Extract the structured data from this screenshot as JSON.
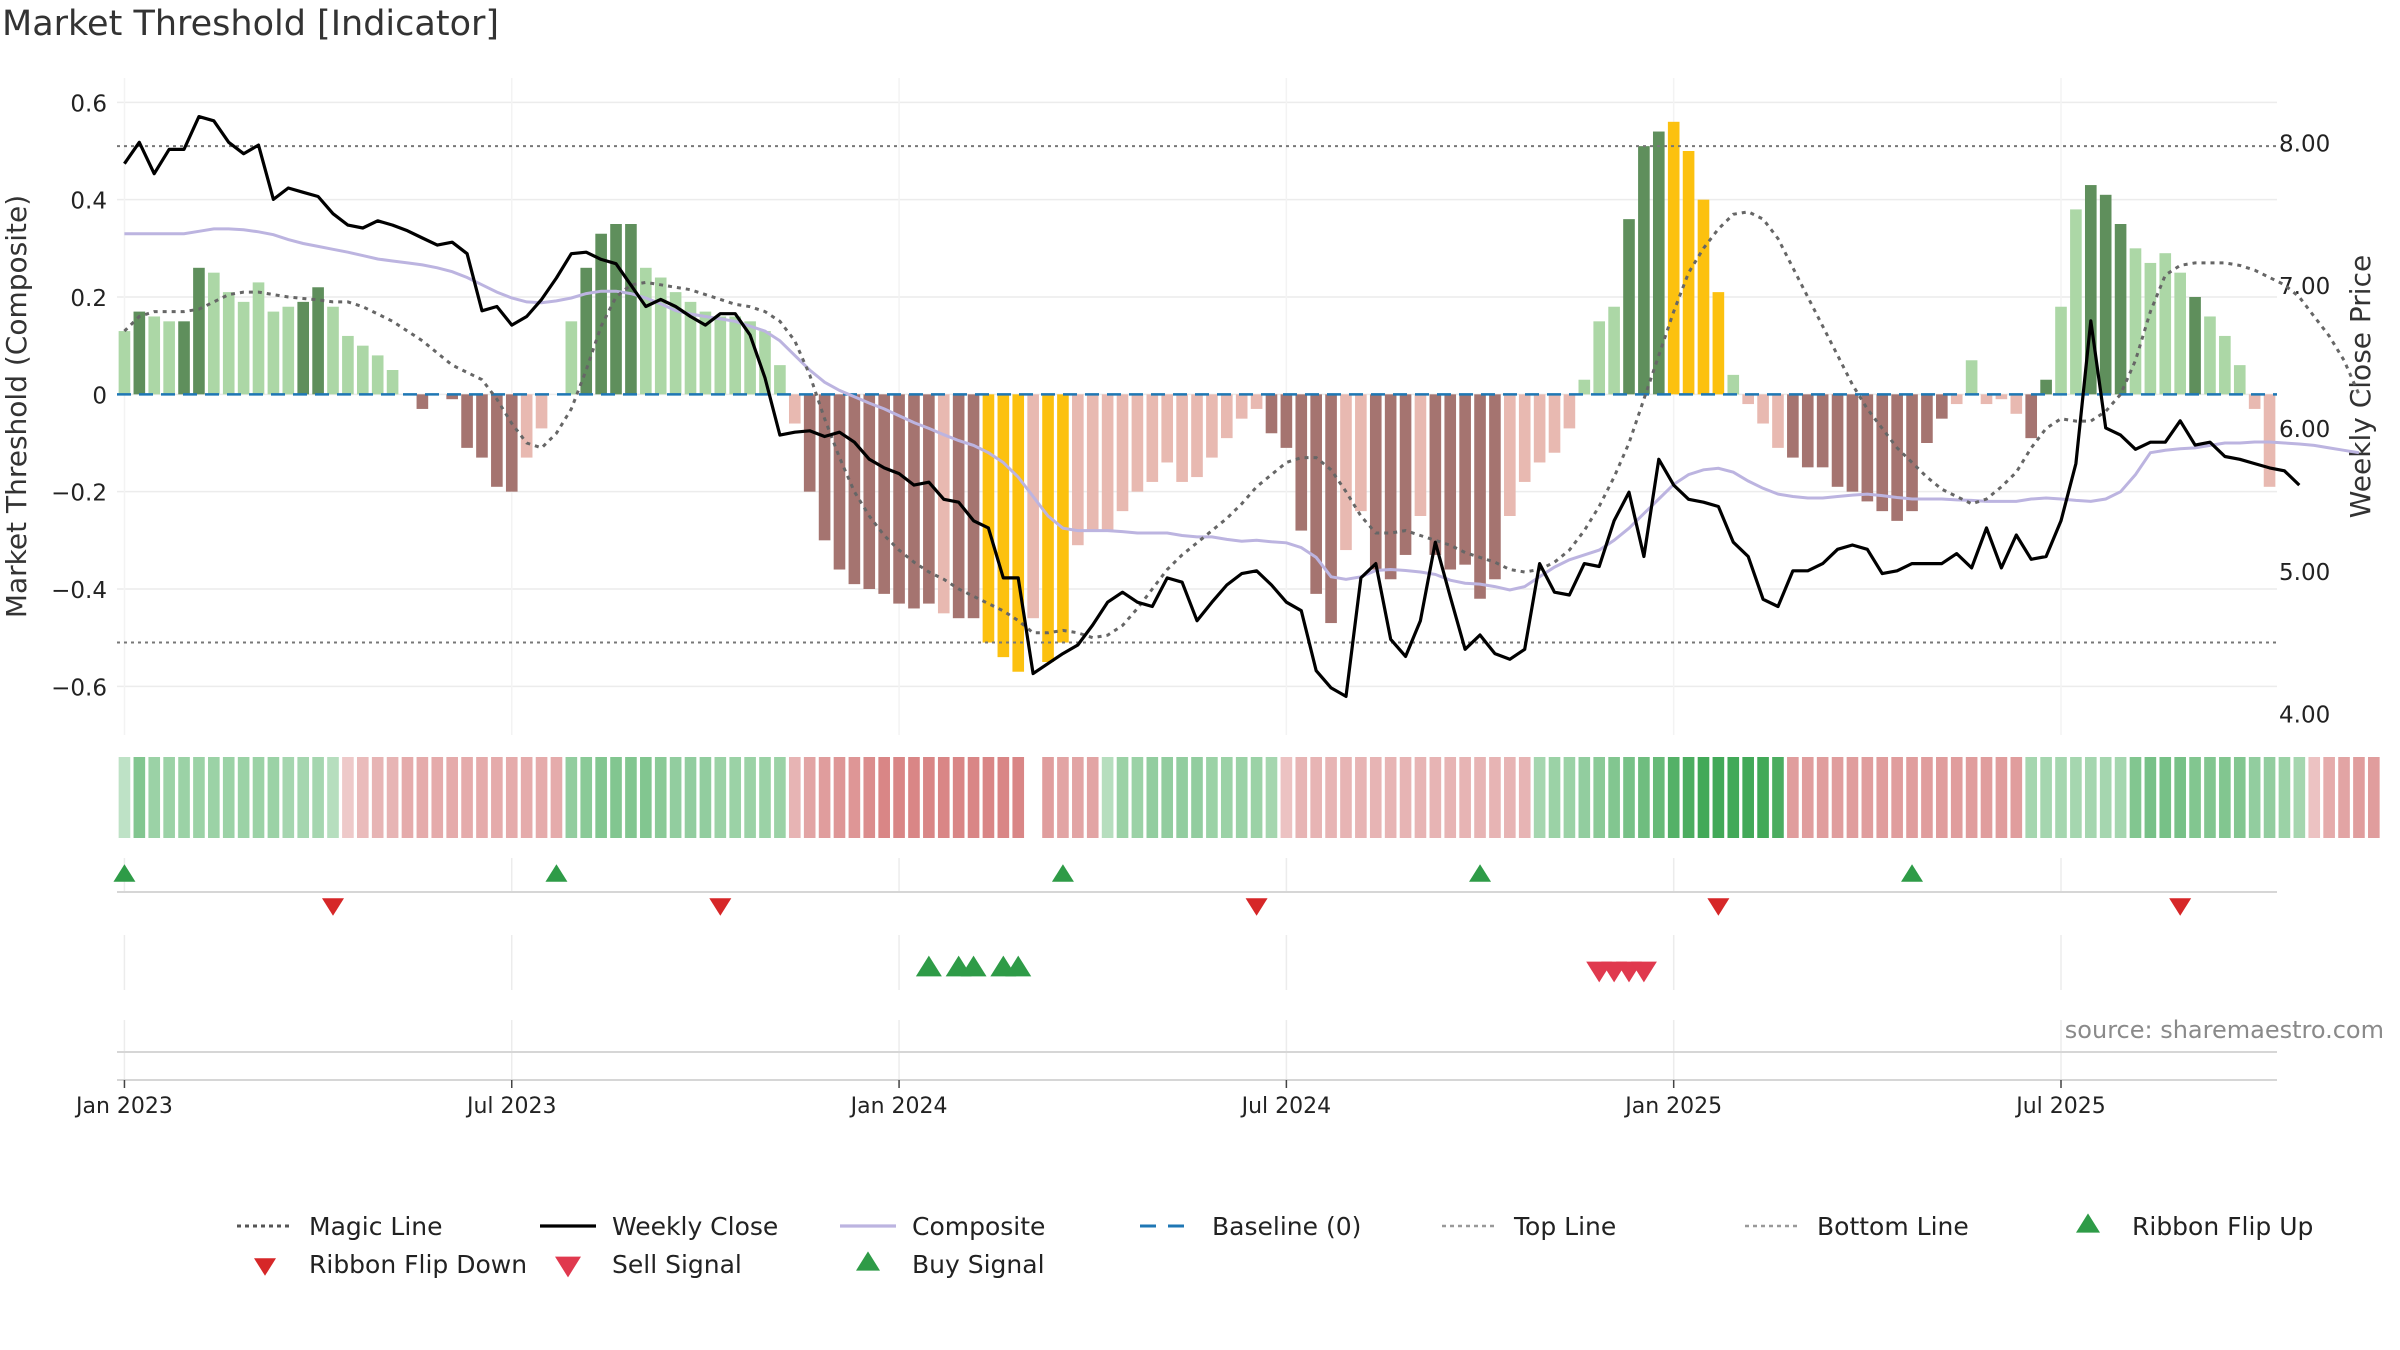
{
  "title": "Market Threshold [Indicator]",
  "source": "source: sharemaestro.com",
  "chart_data": {
    "type": "bar",
    "ylabel": "Market Threshold (Composite)",
    "y2label": "Weekly Close Price",
    "ylim": [
      -0.7,
      0.65
    ],
    "y2lim": [
      3.85,
      8.45
    ],
    "yticks": [
      0.6,
      0.4,
      0.2,
      0,
      -0.2,
      -0.4,
      -0.6
    ],
    "yticklabels": [
      "0.6",
      "0.4",
      "0.2",
      "0",
      "−0.2",
      "−0.4",
      "−0.6"
    ],
    "y2ticks": [
      8,
      7,
      6,
      5,
      4
    ],
    "y2ticklabels": [
      "8.00",
      "7.00",
      "6.00",
      "5.00",
      "4.00"
    ],
    "xticks": [
      0,
      26,
      52,
      78,
      104,
      130
    ],
    "xticklabels": [
      "Jan 2023",
      "Jul 2023",
      "Jan 2024",
      "Jul 2024",
      "Jan 2025",
      "Jul 2025"
    ],
    "top_line": 0.51,
    "bottom_line": -0.51,
    "colors": {
      "pos_strong": "#5f8f5c",
      "pos_weak": "#acd7a6",
      "neg_strong": "#a57470",
      "neg_weak": "#e8b9b1",
      "extreme": "#fcc10f",
      "close": "#000000",
      "composite": "#bcb4e0",
      "magic": "#666666",
      "baseline": "#1f77b4",
      "buy": "#2e9b47",
      "sell": "#e0394e",
      "flip_up": "#2e9b47",
      "flip_down": "#d62728"
    },
    "bars": [
      0.13,
      0.17,
      0.16,
      0.15,
      0.15,
      0.26,
      0.25,
      0.21,
      0.19,
      0.23,
      0.17,
      0.18,
      0.19,
      0.22,
      0.18,
      0.12,
      0.1,
      0.08,
      0.05,
      0.0,
      -0.03,
      0.0,
      -0.01,
      -0.11,
      -0.13,
      -0.19,
      -0.2,
      -0.13,
      -0.07,
      0.0,
      0.15,
      0.26,
      0.33,
      0.35,
      0.35,
      0.26,
      0.24,
      0.21,
      0.19,
      0.17,
      0.16,
      0.16,
      0.15,
      0.13,
      0.06,
      -0.06,
      -0.2,
      -0.3,
      -0.36,
      -0.39,
      -0.4,
      -0.41,
      -0.43,
      -0.44,
      -0.43,
      -0.45,
      -0.46,
      -0.46,
      -0.51,
      -0.54,
      -0.57,
      -0.46,
      -0.55,
      -0.51,
      -0.31,
      -0.28,
      -0.28,
      -0.24,
      -0.2,
      -0.18,
      -0.14,
      -0.18,
      -0.17,
      -0.13,
      -0.09,
      -0.05,
      -0.03,
      -0.08,
      -0.11,
      -0.28,
      -0.41,
      -0.47,
      -0.32,
      -0.24,
      -0.36,
      -0.38,
      -0.33,
      -0.25,
      -0.33,
      -0.36,
      -0.35,
      -0.42,
      -0.38,
      -0.25,
      -0.18,
      -0.14,
      -0.12,
      -0.07,
      0.03,
      0.15,
      0.18,
      0.36,
      0.51,
      0.54,
      0.56,
      0.5,
      0.4,
      0.21,
      0.04,
      -0.02,
      -0.06,
      -0.11,
      -0.13,
      -0.15,
      -0.15,
      -0.19,
      -0.2,
      -0.22,
      -0.24,
      -0.26,
      -0.24,
      -0.1,
      -0.05,
      -0.02,
      0.07,
      -0.02,
      -0.01,
      -0.04,
      -0.09,
      0.03,
      0.18,
      0.38,
      0.43,
      0.41,
      0.35,
      0.3,
      0.27,
      0.29,
      0.25,
      0.2,
      0.16,
      0.12,
      0.06,
      -0.03,
      -0.19
    ],
    "bar_shade": [
      "w",
      "s",
      "w",
      "w",
      "s",
      "s",
      "w",
      "w",
      "w",
      "w",
      "w",
      "w",
      "s",
      "s",
      "w",
      "w",
      "w",
      "w",
      "w",
      "w",
      "s",
      "w",
      "s",
      "s",
      "s",
      "s",
      "s",
      "w",
      "w",
      "w",
      "w",
      "s",
      "s",
      "s",
      "s",
      "w",
      "w",
      "w",
      "w",
      "w",
      "w",
      "w",
      "w",
      "w",
      "w",
      "w",
      "s",
      "s",
      "s",
      "s",
      "s",
      "s",
      "s",
      "s",
      "s",
      "w",
      "s",
      "s",
      "x",
      "x",
      "x",
      "w",
      "x",
      "x",
      "w",
      "w",
      "w",
      "w",
      "w",
      "w",
      "w",
      "w",
      "w",
      "w",
      "w",
      "w",
      "w",
      "s",
      "s",
      "s",
      "s",
      "s",
      "w",
      "w",
      "s",
      "s",
      "s",
      "w",
      "s",
      "s",
      "s",
      "s",
      "s",
      "w",
      "w",
      "w",
      "w",
      "w",
      "w",
      "w",
      "w",
      "s",
      "s",
      "s",
      "x",
      "x",
      "x",
      "x",
      "w",
      "w",
      "w",
      "w",
      "s",
      "s",
      "s",
      "s",
      "s",
      "s",
      "s",
      "s",
      "s",
      "s",
      "s",
      "w",
      "w",
      "w",
      "w",
      "w",
      "s",
      "s",
      "w",
      "w",
      "s",
      "s",
      "s",
      "w",
      "w",
      "w",
      "w",
      "s",
      "w",
      "w",
      "w",
      "w",
      "w",
      "w",
      "s"
    ],
    "close": [
      7.85,
      8.0,
      7.78,
      7.95,
      7.95,
      8.18,
      8.15,
      8.0,
      7.92,
      7.98,
      7.6,
      7.68,
      7.65,
      7.62,
      7.5,
      7.42,
      7.4,
      7.45,
      7.42,
      7.38,
      7.33,
      7.28,
      7.3,
      7.22,
      6.82,
      6.85,
      6.72,
      6.78,
      6.9,
      7.05,
      7.22,
      7.23,
      7.18,
      7.15,
      7.0,
      6.85,
      6.9,
      6.85,
      6.78,
      6.72,
      6.8,
      6.8,
      6.65,
      6.35,
      5.95,
      5.97,
      5.98,
      5.94,
      5.97,
      5.9,
      5.78,
      5.72,
      5.68,
      5.6,
      5.62,
      5.5,
      5.48,
      5.35,
      5.3,
      4.95,
      4.95,
      4.28,
      4.35,
      4.42,
      4.48,
      4.62,
      4.78,
      4.85,
      4.78,
      4.75,
      4.95,
      4.92,
      4.65,
      4.78,
      4.9,
      4.98,
      5.0,
      4.9,
      4.78,
      4.72,
      4.3,
      4.18,
      4.12,
      4.95,
      5.05,
      4.52,
      4.4,
      4.65,
      5.2,
      4.82,
      4.45,
      4.55,
      4.42,
      4.38,
      4.45,
      5.05,
      4.85,
      4.83,
      5.05,
      5.03,
      5.35,
      5.55,
      5.1,
      5.78,
      5.6,
      5.5,
      5.48,
      5.45,
      5.2,
      5.1,
      4.8,
      4.75,
      5.0,
      5.0,
      5.05,
      5.15,
      5.18,
      5.15,
      4.98,
      5.0,
      5.05,
      5.05,
      5.05,
      5.12,
      5.02,
      5.3,
      5.02,
      5.25,
      5.08,
      5.1,
      5.35,
      5.75,
      6.75,
      6.0,
      5.95,
      5.85,
      5.9,
      5.9,
      6.05,
      5.88,
      5.9,
      5.8,
      5.78,
      5.75,
      5.72,
      5.7,
      5.6
    ],
    "composite": [
      0.33,
      0.33,
      0.33,
      0.33,
      0.33,
      0.335,
      0.34,
      0.34,
      0.338,
      0.334,
      0.328,
      0.318,
      0.31,
      0.304,
      0.298,
      0.292,
      0.285,
      0.278,
      0.274,
      0.27,
      0.266,
      0.26,
      0.252,
      0.24,
      0.225,
      0.21,
      0.198,
      0.19,
      0.188,
      0.192,
      0.198,
      0.207,
      0.212,
      0.212,
      0.207,
      0.198,
      0.186,
      0.172,
      0.165,
      0.16,
      0.155,
      0.15,
      0.14,
      0.13,
      0.11,
      0.08,
      0.05,
      0.025,
      0.008,
      -0.005,
      -0.018,
      -0.03,
      -0.044,
      -0.058,
      -0.07,
      -0.083,
      -0.095,
      -0.105,
      -0.12,
      -0.14,
      -0.17,
      -0.21,
      -0.25,
      -0.275,
      -0.28,
      -0.28,
      -0.28,
      -0.282,
      -0.285,
      -0.285,
      -0.285,
      -0.29,
      -0.293,
      -0.293,
      -0.298,
      -0.302,
      -0.3,
      -0.303,
      -0.305,
      -0.315,
      -0.335,
      -0.375,
      -0.38,
      -0.375,
      -0.362,
      -0.36,
      -0.362,
      -0.365,
      -0.37,
      -0.382,
      -0.388,
      -0.39,
      -0.395,
      -0.402,
      -0.395,
      -0.375,
      -0.355,
      -0.34,
      -0.33,
      -0.32,
      -0.3,
      -0.275,
      -0.245,
      -0.215,
      -0.185,
      -0.165,
      -0.155,
      -0.152,
      -0.16,
      -0.178,
      -0.193,
      -0.205,
      -0.21,
      -0.213,
      -0.213,
      -0.21,
      -0.207,
      -0.205,
      -0.208,
      -0.212,
      -0.215,
      -0.215,
      -0.215,
      -0.217,
      -0.218,
      -0.22,
      -0.22,
      -0.22,
      -0.215,
      -0.213,
      -0.215,
      -0.218,
      -0.22,
      -0.215,
      -0.2,
      -0.165,
      -0.12,
      -0.115,
      -0.112,
      -0.11,
      -0.105,
      -0.1,
      -0.1,
      -0.098,
      -0.098,
      -0.1,
      -0.102,
      -0.105,
      -0.11,
      -0.115,
      -0.12
    ],
    "magic": [
      0.13,
      0.16,
      0.17,
      0.17,
      0.17,
      0.175,
      0.19,
      0.205,
      0.21,
      0.21,
      0.205,
      0.2,
      0.197,
      0.194,
      0.19,
      0.19,
      0.18,
      0.165,
      0.15,
      0.13,
      0.11,
      0.085,
      0.06,
      0.045,
      0.03,
      -0.01,
      -0.06,
      -0.1,
      -0.11,
      -0.08,
      -0.03,
      0.05,
      0.14,
      0.2,
      0.225,
      0.23,
      0.225,
      0.22,
      0.215,
      0.205,
      0.195,
      0.185,
      0.18,
      0.17,
      0.15,
      0.11,
      0.04,
      -0.05,
      -0.13,
      -0.2,
      -0.25,
      -0.29,
      -0.32,
      -0.345,
      -0.365,
      -0.38,
      -0.4,
      -0.415,
      -0.43,
      -0.445,
      -0.465,
      -0.49,
      -0.49,
      -0.485,
      -0.49,
      -0.5,
      -0.495,
      -0.475,
      -0.44,
      -0.4,
      -0.36,
      -0.33,
      -0.305,
      -0.28,
      -0.255,
      -0.225,
      -0.19,
      -0.165,
      -0.14,
      -0.13,
      -0.13,
      -0.155,
      -0.2,
      -0.25,
      -0.285,
      -0.285,
      -0.28,
      -0.29,
      -0.3,
      -0.31,
      -0.325,
      -0.335,
      -0.345,
      -0.36,
      -0.365,
      -0.36,
      -0.345,
      -0.32,
      -0.28,
      -0.23,
      -0.17,
      -0.1,
      -0.01,
      0.08,
      0.17,
      0.25,
      0.3,
      0.34,
      0.37,
      0.375,
      0.36,
      0.32,
      0.26,
      0.2,
      0.14,
      0.08,
      0.02,
      -0.03,
      -0.07,
      -0.11,
      -0.14,
      -0.17,
      -0.195,
      -0.21,
      -0.225,
      -0.215,
      -0.19,
      -0.16,
      -0.11,
      -0.07,
      -0.05,
      -0.055,
      -0.055,
      -0.035,
      0.0,
      0.07,
      0.17,
      0.245,
      0.265,
      0.27,
      0.27,
      0.27,
      0.265,
      0.255,
      0.24,
      0.225,
      0.2,
      0.16,
      0.12,
      0.07,
      0.0
    ],
    "ribbon": [
      0.15,
      0.5,
      0.35,
      0.35,
      0.35,
      0.35,
      0.35,
      0.35,
      0.35,
      0.35,
      0.35,
      0.3,
      0.3,
      0.3,
      0.2,
      -0.15,
      -0.25,
      -0.3,
      -0.3,
      -0.35,
      -0.35,
      -0.35,
      -0.35,
      -0.35,
      -0.35,
      -0.35,
      -0.35,
      -0.35,
      -0.35,
      -0.35,
      0.4,
      0.45,
      0.5,
      0.5,
      0.5,
      0.5,
      0.45,
      0.4,
      0.4,
      0.4,
      0.35,
      0.35,
      0.35,
      0.35,
      0.35,
      -0.3,
      -0.4,
      -0.45,
      -0.5,
      -0.5,
      -0.55,
      -0.6,
      -0.6,
      -0.6,
      -0.6,
      -0.6,
      -0.6,
      -0.6,
      -0.6,
      -0.6,
      -0.6,
      null,
      -0.45,
      -0.4,
      -0.4,
      -0.4,
      0.2,
      0.35,
      0.35,
      0.4,
      0.4,
      0.4,
      0.4,
      0.35,
      0.35,
      0.35,
      0.35,
      0.3,
      -0.2,
      -0.3,
      -0.3,
      -0.3,
      -0.3,
      -0.3,
      -0.3,
      -0.3,
      -0.3,
      -0.3,
      -0.3,
      -0.3,
      -0.3,
      -0.3,
      -0.3,
      -0.3,
      -0.3,
      0.3,
      0.35,
      0.35,
      0.4,
      0.45,
      0.5,
      0.55,
      0.6,
      0.65,
      0.75,
      0.8,
      0.85,
      0.85,
      0.85,
      0.85,
      0.85,
      0.8,
      -0.45,
      -0.45,
      -0.45,
      -0.45,
      -0.45,
      -0.45,
      -0.45,
      -0.45,
      -0.45,
      -0.45,
      -0.45,
      -0.45,
      -0.45,
      -0.45,
      -0.45,
      -0.45,
      0.3,
      0.3,
      0.3,
      0.3,
      0.3,
      0.3,
      0.3,
      0.5,
      0.55,
      0.55,
      0.55,
      0.5,
      0.5,
      0.5,
      0.5,
      0.4,
      0.4,
      0.35,
      0.3,
      -0.2,
      -0.35,
      -0.4,
      -0.45,
      -0.45
    ],
    "flip_up": [
      0,
      29,
      63,
      91,
      120
    ],
    "flip_down": [
      14,
      40,
      76,
      107,
      138
    ],
    "buy": [
      54,
      56,
      57,
      59,
      60
    ],
    "sell": [
      99,
      100,
      101,
      102
    ],
    "legend": [
      {
        "label": "Magic Line",
        "kind": "dotted-dark"
      },
      {
        "label": "Weekly Close",
        "kind": "solid-black"
      },
      {
        "label": "Composite",
        "kind": "solid-lavender"
      },
      {
        "label": "Baseline (0)",
        "kind": "dashed-blue"
      },
      {
        "label": "Top Line",
        "kind": "dotted-grey"
      },
      {
        "label": "Bottom Line",
        "kind": "dotted-grey"
      },
      {
        "label": "Ribbon Flip Up",
        "kind": "tri-up-green"
      },
      {
        "label": "Ribbon Flip Down",
        "kind": "tri-down-red"
      },
      {
        "label": "Sell Signal",
        "kind": "tri-down-pink"
      },
      {
        "label": "Buy Signal",
        "kind": "tri-up-green"
      }
    ]
  }
}
